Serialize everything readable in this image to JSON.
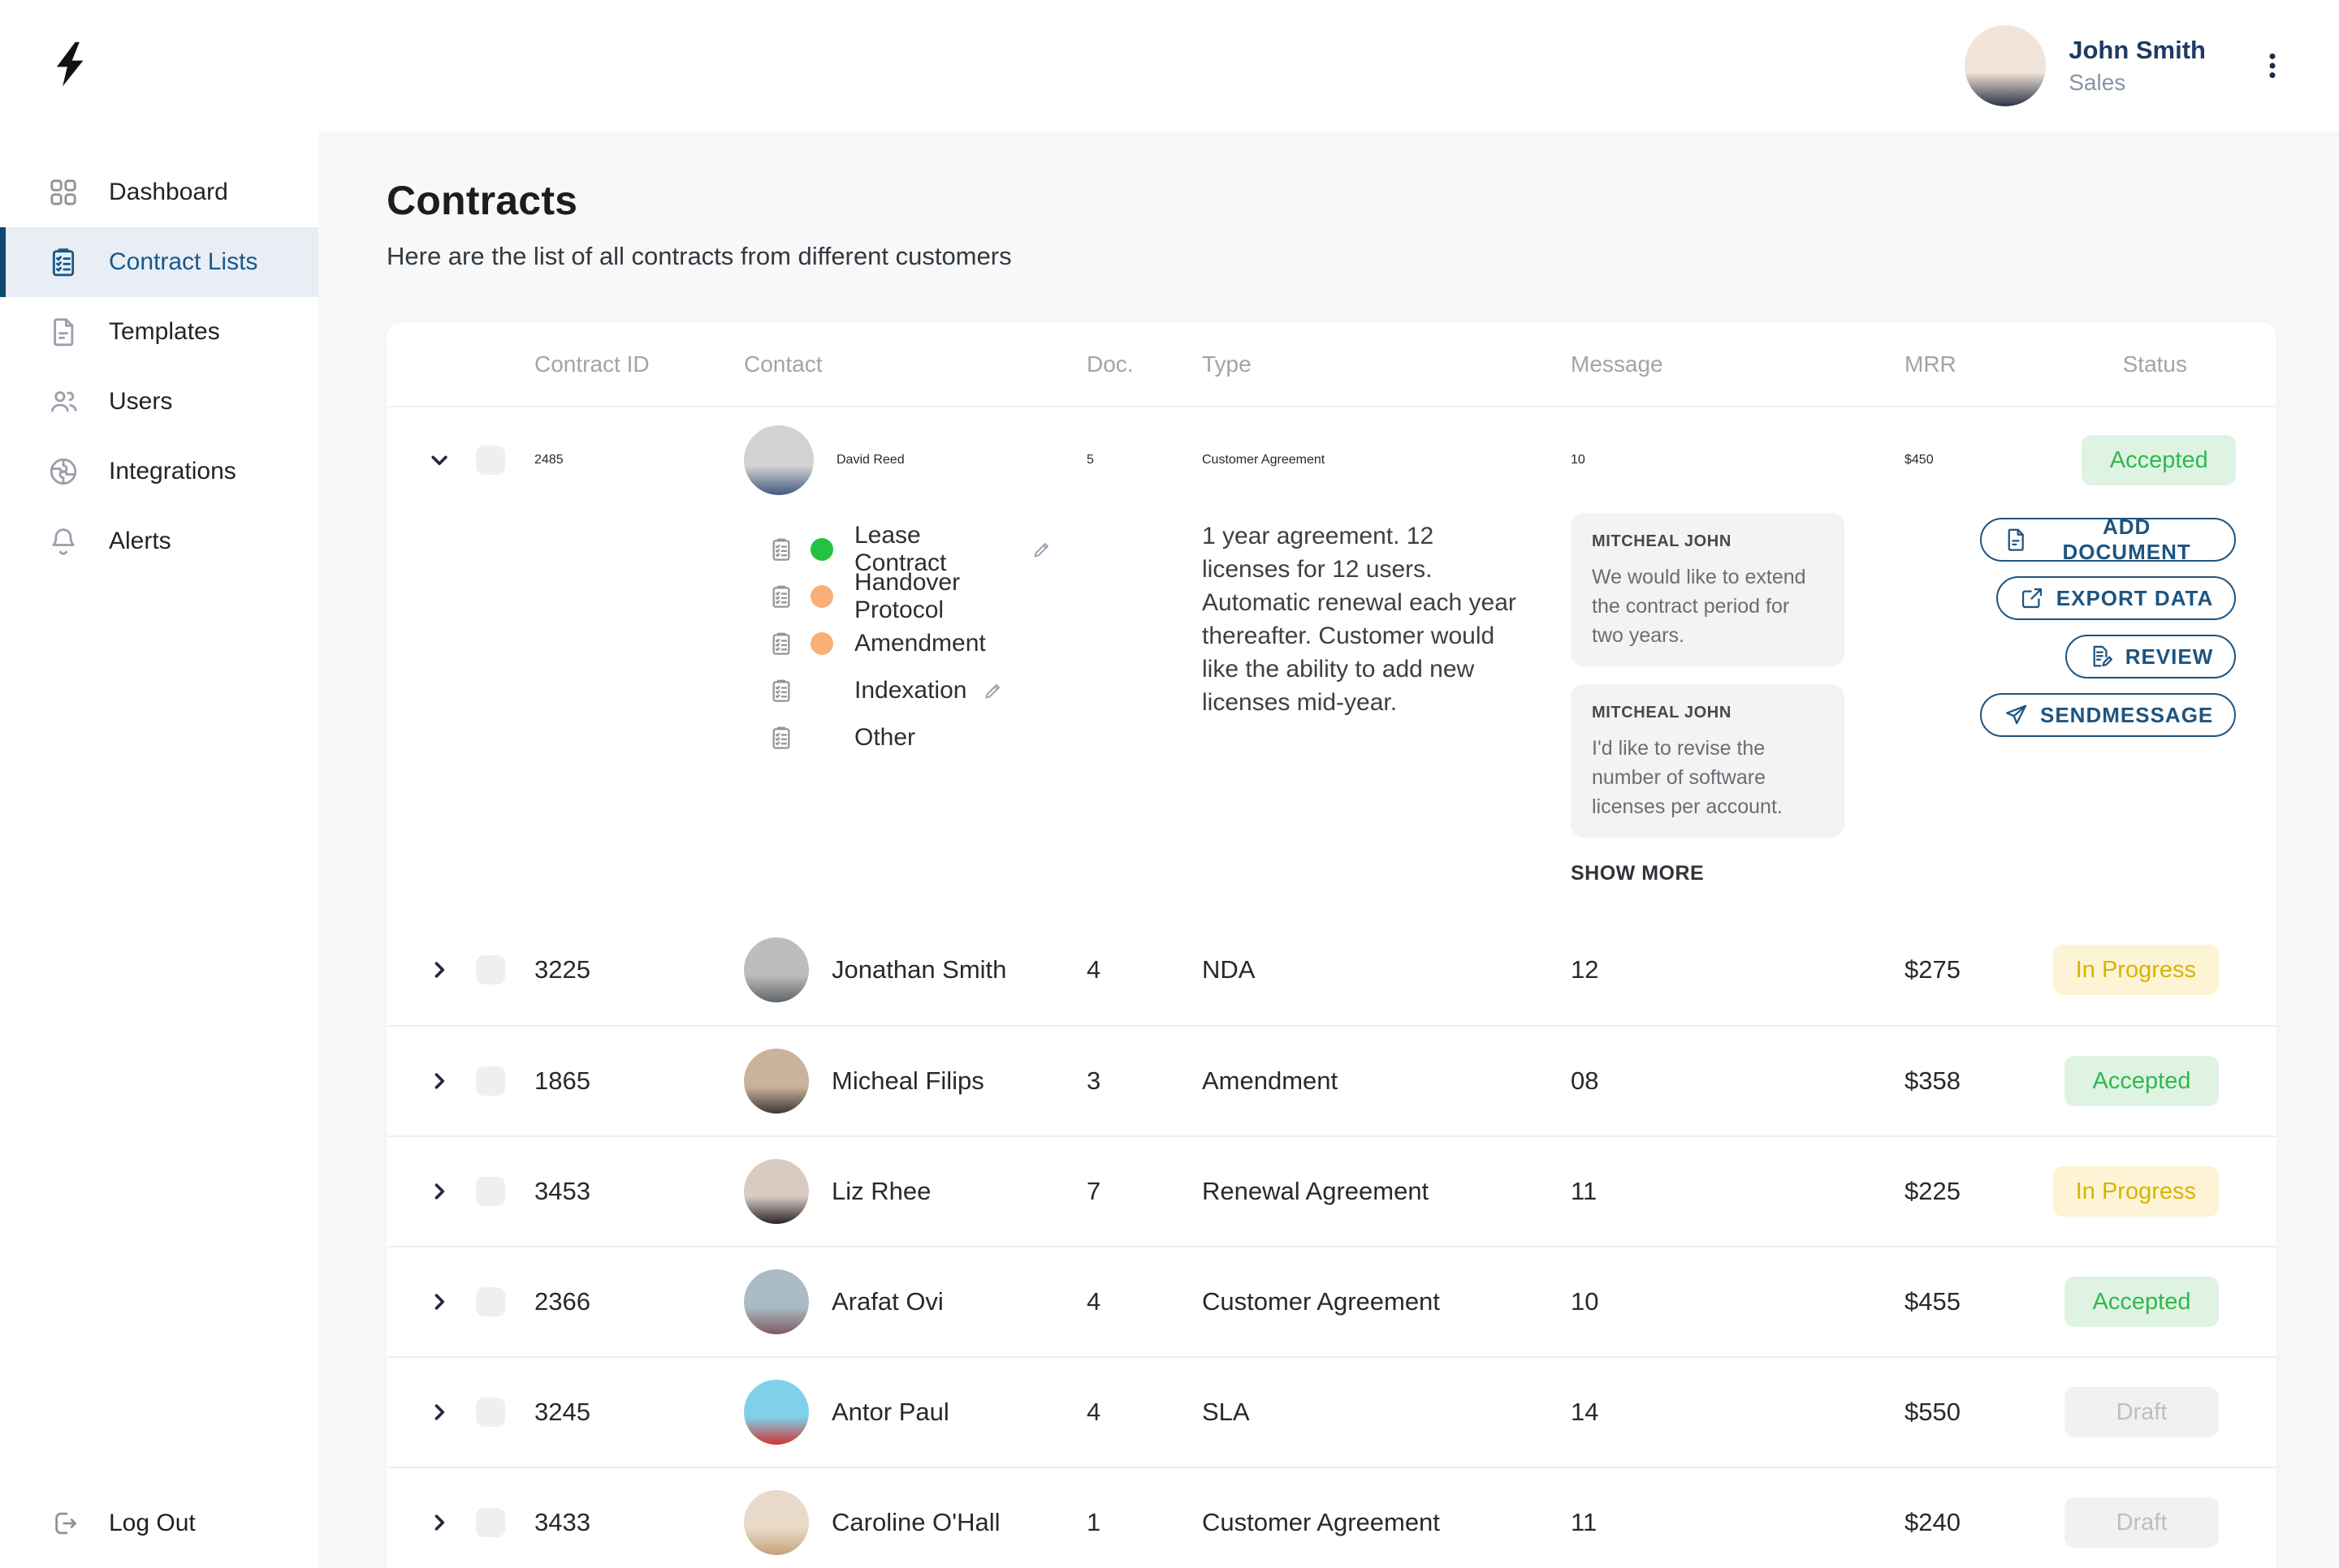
{
  "header": {
    "user_name": "John Smith",
    "user_role": "Sales",
    "avatar_colors": [
      "#f2e4d8",
      "#2a3447"
    ]
  },
  "sidebar": {
    "items": [
      {
        "key": "dashboard",
        "label": "Dashboard",
        "icon": "grid",
        "active": false
      },
      {
        "key": "contract-lists",
        "label": "Contract Lists",
        "icon": "clipboard",
        "active": true
      },
      {
        "key": "templates",
        "label": "Templates",
        "icon": "file",
        "active": false
      },
      {
        "key": "users",
        "label": "Users",
        "icon": "users",
        "active": false
      },
      {
        "key": "integrations",
        "label": "Integrations",
        "icon": "integrations",
        "active": false
      },
      {
        "key": "alerts",
        "label": "Alerts",
        "icon": "bell",
        "active": false
      }
    ],
    "logout_label": "Log Out"
  },
  "page": {
    "title": "Contracts",
    "subtitle": "Here are the list of all contracts from different customers"
  },
  "table": {
    "columns": [
      "Contract ID",
      "Contact",
      "Doc.",
      "Type",
      "Message",
      "MRR",
      "Status"
    ],
    "expanded": {
      "id": "2485",
      "contact": "David Reed",
      "avatar_colors": [
        "#d2d2d2",
        "#41597f"
      ],
      "doc": "5",
      "type": "Customer Agreement",
      "type_description": "1 year agreement. 12 licenses for 12 users. Automatic renewal each year thereafter. Customer would like the ability to add new licenses mid-year.",
      "message_count": "10",
      "mrr": "$450",
      "status": "Accepted",
      "status_variant": "accepted",
      "documents": [
        {
          "label": "Lease Contract",
          "dot": "#26c13e",
          "editable": true
        },
        {
          "label": "Handover Protocol",
          "dot": "#f8b078",
          "editable": false
        },
        {
          "label": "Amendment",
          "dot": "#f8b078",
          "editable": false
        },
        {
          "label": "Indexation",
          "dot": "",
          "editable": true
        },
        {
          "label": "Other",
          "dot": "",
          "editable": false
        }
      ],
      "messages": [
        {
          "sender": "MITCHEAL JOHN",
          "text": "We would like to extend the contract period for two years."
        },
        {
          "sender": "MITCHEAL JOHN",
          "text": "I'd like to revise the number of software licenses per account."
        }
      ],
      "show_more_label": "SHOW MORE",
      "actions": [
        {
          "key": "add-document",
          "label": "ADD DOCUMENT",
          "icon": "file"
        },
        {
          "key": "export-data",
          "label": "EXPORT DATA",
          "icon": "external"
        },
        {
          "key": "review",
          "label": "REVIEW",
          "icon": "review"
        },
        {
          "key": "send-message",
          "label": "SENDMESSAGE",
          "icon": "send"
        }
      ]
    },
    "rows": [
      {
        "id": "3225",
        "contact": "Jonathan Smith",
        "avatar_colors": [
          "#bdbdbd",
          "#5f6468"
        ],
        "doc": "4",
        "type": "NDA",
        "message": "12",
        "mrr": "$275",
        "status": "In Progress",
        "status_variant": "progress"
      },
      {
        "id": "1865",
        "contact": "Micheal Filips",
        "avatar_colors": [
          "#cbb39b",
          "#3f3734"
        ],
        "doc": "3",
        "type": "Amendment",
        "message": "08",
        "mrr": "$358",
        "status": "Accepted",
        "status_variant": "accepted"
      },
      {
        "id": "3453",
        "contact": "Liz Rhee",
        "avatar_colors": [
          "#d8cbc2",
          "#2a2326"
        ],
        "doc": "7",
        "type": "Renewal Agreement",
        "message": "11",
        "mrr": "$225",
        "status": "In Progress",
        "status_variant": "progress"
      },
      {
        "id": "2366",
        "contact": "Arafat Ovi",
        "avatar_colors": [
          "#a9bcc4",
          "#7d5a66"
        ],
        "doc": "4",
        "type": "Customer Agreement",
        "message": "10",
        "mrr": "$455",
        "status": "Accepted",
        "status_variant": "accepted"
      },
      {
        "id": "3245",
        "contact": "Antor Paul",
        "avatar_colors": [
          "#7fd0e8",
          "#cf3434"
        ],
        "doc": "4",
        "type": "SLA",
        "message": "14",
        "mrr": "$550",
        "status": "Draft",
        "status_variant": "draft"
      },
      {
        "id": "3433",
        "contact": "Caroline O'Hall",
        "avatar_colors": [
          "#e9dac9",
          "#c3a379"
        ],
        "doc": "1",
        "type": "Customer Agreement",
        "message": "11",
        "mrr": "$240",
        "status": "Draft",
        "status_variant": "draft"
      }
    ]
  },
  "colors": {
    "accent": "#1d5480",
    "sidebar_active_bg": "#e8eef4",
    "status": {
      "accepted": {
        "bg": "#def3e2",
        "text": "#2eb94d"
      },
      "progress": {
        "bg": "#fcf4d4",
        "text": "#d9b300"
      },
      "draft": {
        "bg": "#f1f1f2",
        "text": "#bcbfc3"
      }
    },
    "dots": {
      "green": "#26c13e",
      "orange": "#f8b078"
    }
  }
}
